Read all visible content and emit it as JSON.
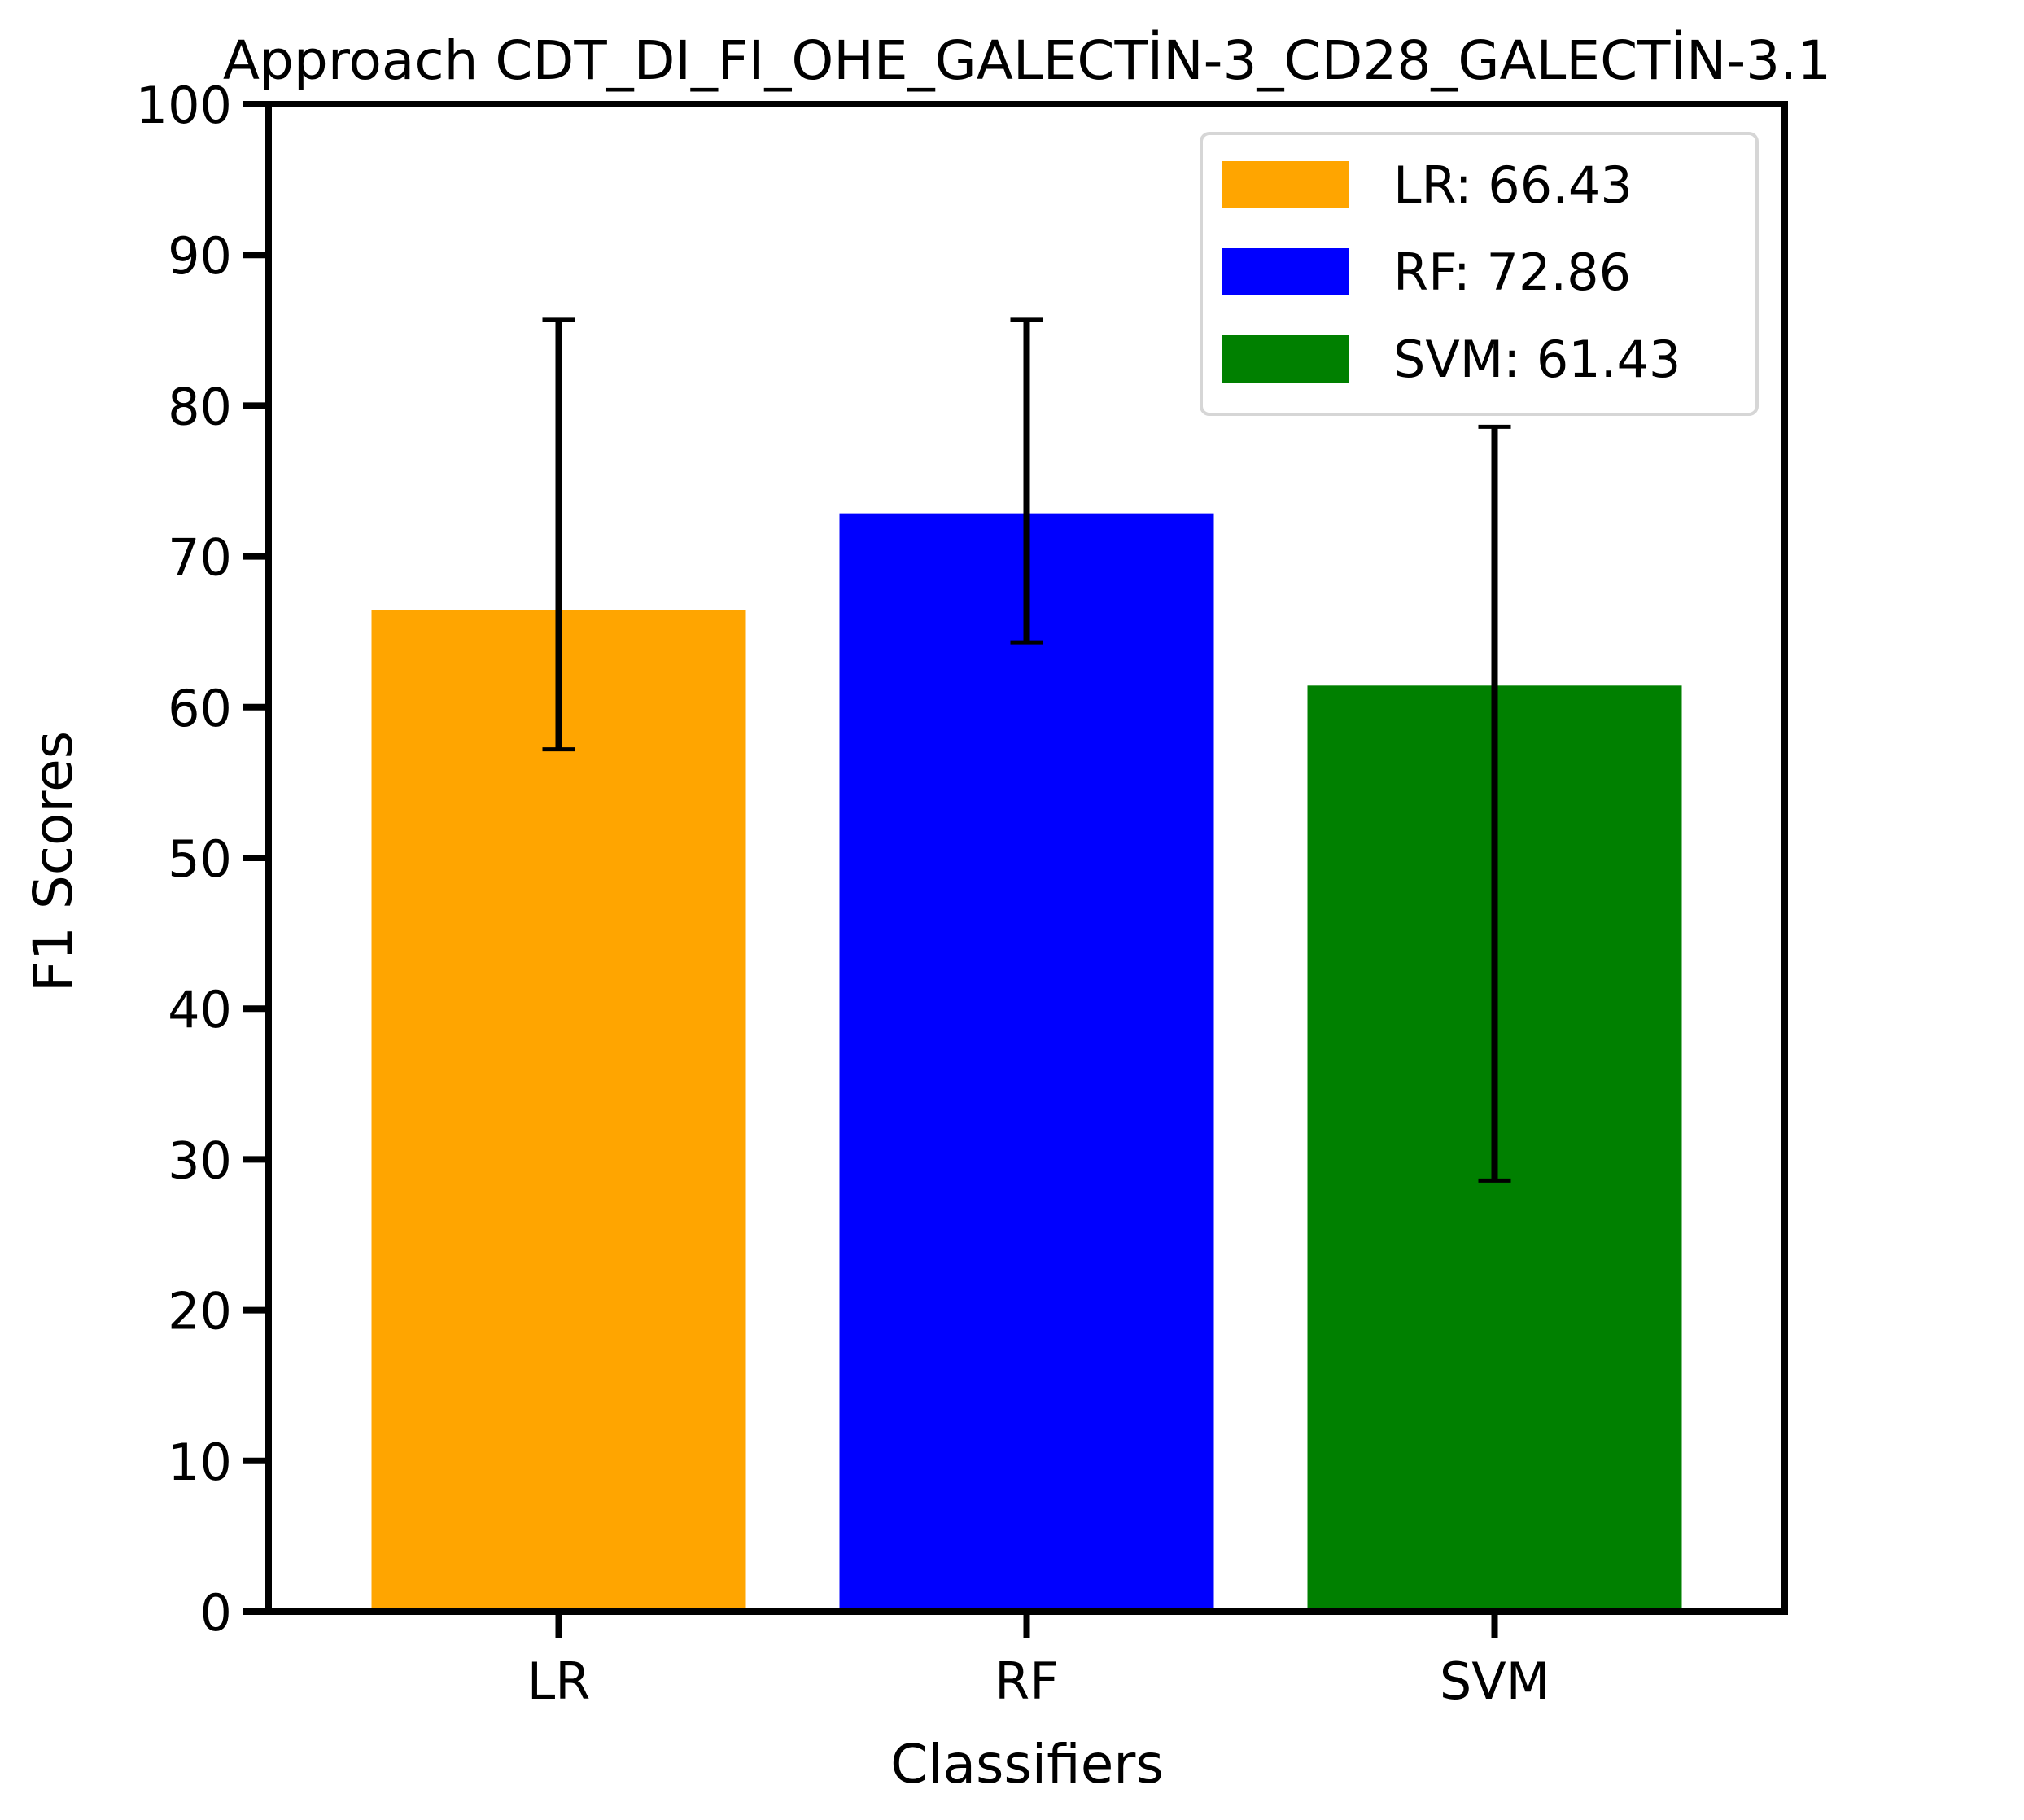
{
  "chart_data": {
    "type": "bar",
    "title": "Approach CDT_DI_FI_OHE_GALECTİN-3_CD28_GALECTİN-3.1",
    "xlabel": "Classifiers",
    "ylabel": "F1 Scores",
    "categories": [
      "LR",
      "RF",
      "SVM"
    ],
    "values": [
      66.43,
      72.86,
      61.43
    ],
    "error_low": [
      57.2,
      64.3,
      28.6
    ],
    "error_high": [
      85.7,
      85.7,
      78.6
    ],
    "colors": [
      "#FFA500",
      "#0000FF",
      "#008000"
    ],
    "ylim": [
      0,
      100
    ],
    "yticks": [
      "0",
      "10",
      "20",
      "30",
      "40",
      "50",
      "60",
      "70",
      "80",
      "90",
      "100"
    ],
    "grid": false,
    "legend": {
      "position": "top-right",
      "entries": [
        "LR: 66.43",
        "RF: 72.86",
        "SVM: 61.43"
      ]
    }
  }
}
